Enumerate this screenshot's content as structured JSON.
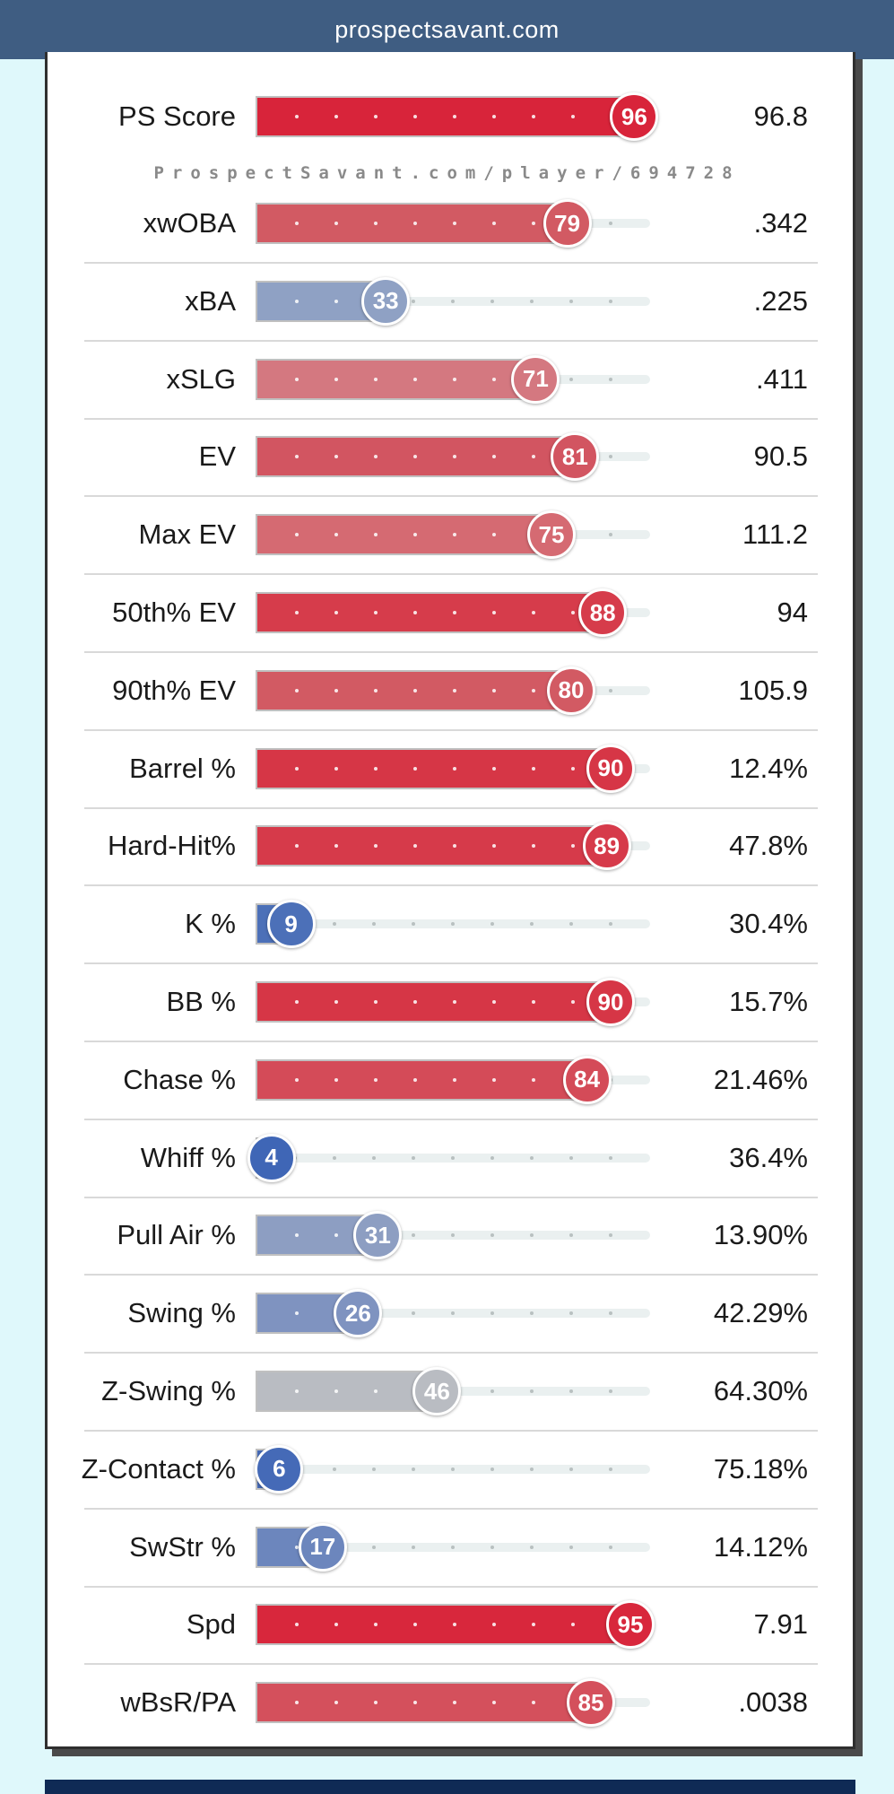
{
  "header": {
    "site": "prospectsavant.com"
  },
  "watermark": "ProspectSavant.com/player/694728",
  "colors": {
    "header_bg": "#3f5d82",
    "page_bg": "#dff8fb"
  },
  "rows": [
    {
      "label": "PS Score",
      "percentile": 96,
      "value": "96.8",
      "color": "#d8243a"
    },
    {
      "label": "xwOBA",
      "percentile": 79,
      "value": ".342",
      "color": "#d25a63"
    },
    {
      "label": "xBA",
      "percentile": 33,
      "value": ".225",
      "color": "#8fa1c4"
    },
    {
      "label": "xSLG",
      "percentile": 71,
      "value": ".411",
      "color": "#d47880"
    },
    {
      "label": "EV",
      "percentile": 81,
      "value": "90.5",
      "color": "#d25561"
    },
    {
      "label": "Max EV",
      "percentile": 75,
      "value": "111.2",
      "color": "#d56a72"
    },
    {
      "label": "50th% EV",
      "percentile": 88,
      "value": "94",
      "color": "#d63c4b"
    },
    {
      "label": "90th% EV",
      "percentile": 80,
      "value": "105.9",
      "color": "#d25a63"
    },
    {
      "label": "Barrel %",
      "percentile": 90,
      "value": "12.4%",
      "color": "#d63646"
    },
    {
      "label": "Hard-Hit%",
      "percentile": 89,
      "value": "47.8%",
      "color": "#d63a4a"
    },
    {
      "label": "K %",
      "percentile": 9,
      "value": "30.4%",
      "color": "#4c70b8"
    },
    {
      "label": "BB %",
      "percentile": 90,
      "value": "15.7%",
      "color": "#d63646"
    },
    {
      "label": "Chase %",
      "percentile": 84,
      "value": "21.46%",
      "color": "#d44b58"
    },
    {
      "label": "Whiff %",
      "percentile": 4,
      "value": "36.4%",
      "color": "#3f66b6"
    },
    {
      "label": "Pull Air %",
      "percentile": 31,
      "value": "13.90%",
      "color": "#8d9ec2"
    },
    {
      "label": "Swing %",
      "percentile": 26,
      "value": "42.29%",
      "color": "#7f93c0"
    },
    {
      "label": "Z-Swing %",
      "percentile": 46,
      "value": "64.30%",
      "color": "#b9bcc2"
    },
    {
      "label": "Z-Contact %",
      "percentile": 6,
      "value": "75.18%",
      "color": "#456ab7"
    },
    {
      "label": "SwStr %",
      "percentile": 17,
      "value": "14.12%",
      "color": "#6c86bd"
    },
    {
      "label": "Spd",
      "percentile": 95,
      "value": "7.91",
      "color": "#d8273c"
    },
    {
      "label": "wBsR/PA",
      "percentile": 85,
      "value": ".0038",
      "color": "#d4505c"
    }
  ]
}
